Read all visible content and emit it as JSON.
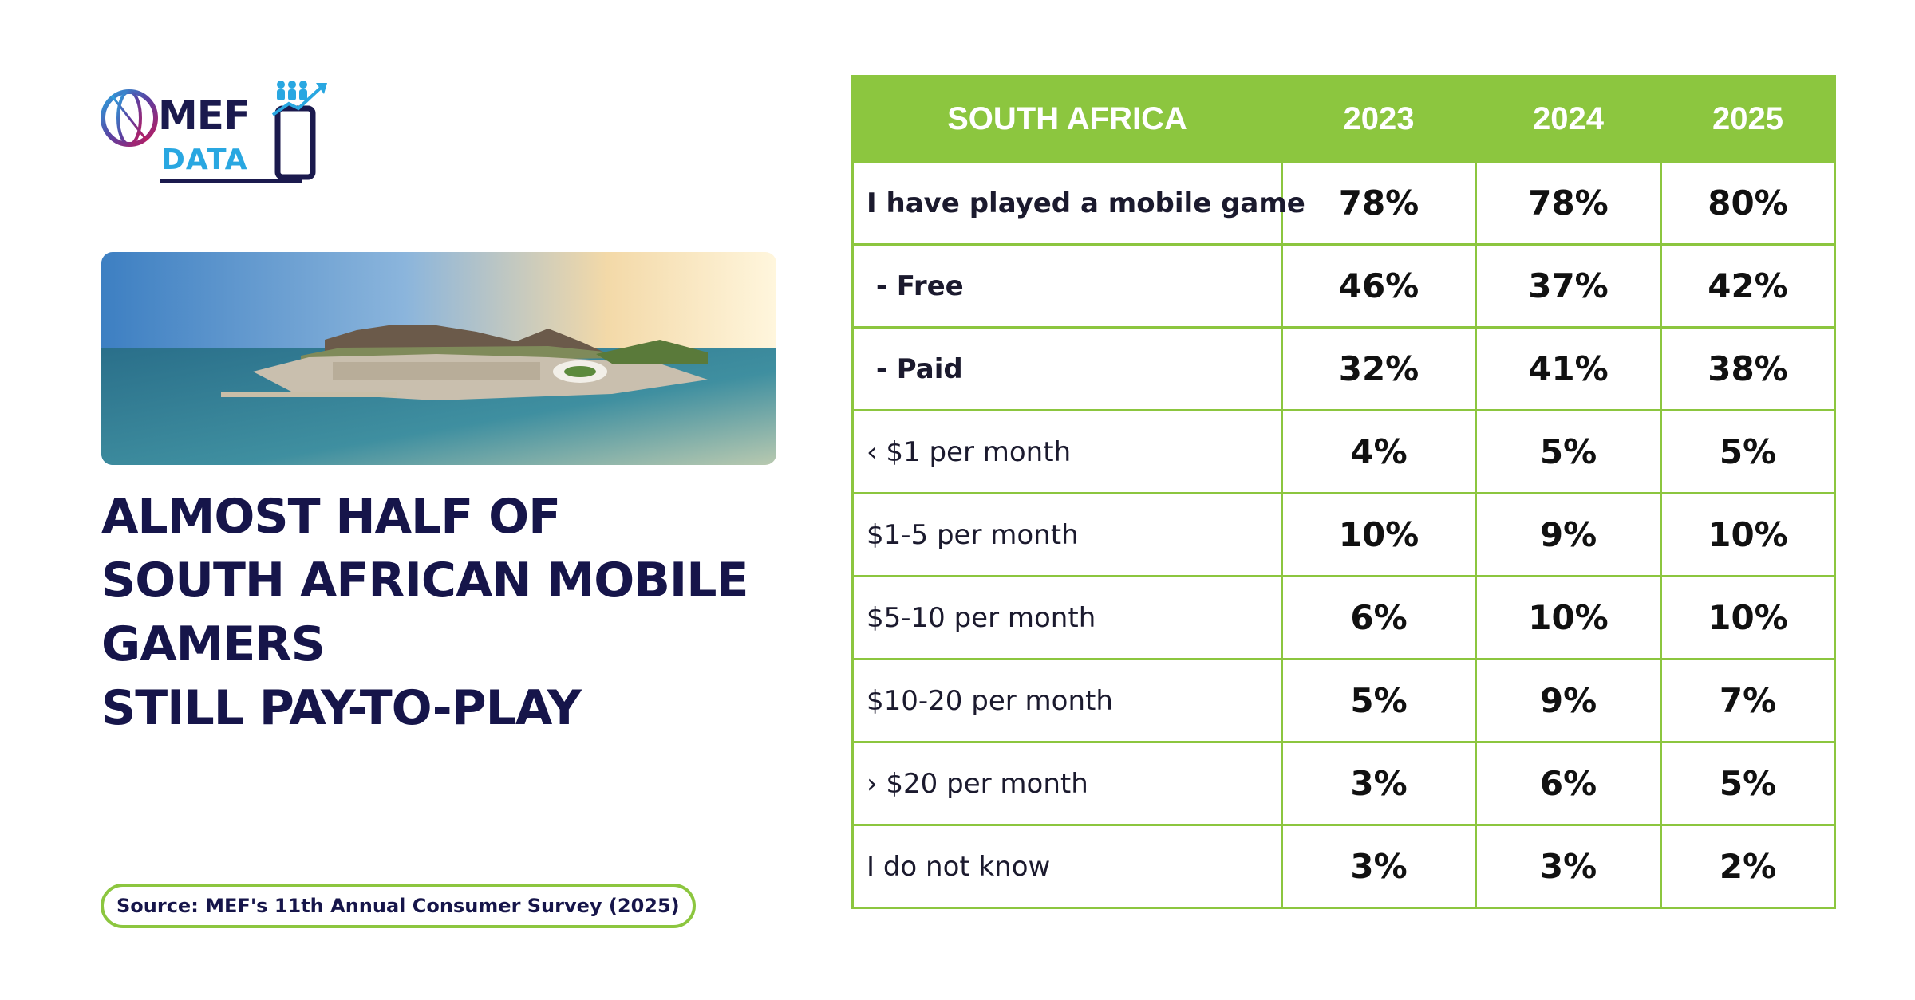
{
  "brand": {
    "name": "MEF",
    "sub": "DATA",
    "colors": {
      "navy": "#16154a",
      "green": "#8cc63f",
      "blue": "#29a7e1"
    }
  },
  "headline": [
    "ALMOST HALF OF",
    "SOUTH AFRICAN MOBILE",
    "GAMERS",
    "STILL PAY-TO-PLAY"
  ],
  "source": "Source: MEF's 11th Annual Consumer Survey (2025)",
  "chart_data": {
    "type": "table",
    "columns": [
      "SOUTH AFRICA",
      "2023",
      "2024",
      "2025"
    ],
    "rows": [
      {
        "label": "I have played a mobile game",
        "bold": true,
        "values": [
          "78%",
          "78%",
          "80%"
        ]
      },
      {
        "label": " - Free",
        "bold": true,
        "values": [
          "46%",
          "37%",
          "42%"
        ]
      },
      {
        "label": " - Paid",
        "bold": true,
        "values": [
          "32%",
          "41%",
          "38%"
        ]
      },
      {
        "label": "‹ $1 per month",
        "bold": false,
        "values": [
          "4%",
          "5%",
          "5%"
        ]
      },
      {
        "label": "$1-5 per month",
        "bold": false,
        "values": [
          "10%",
          "9%",
          "10%"
        ]
      },
      {
        "label": "$5-10 per month",
        "bold": false,
        "values": [
          "6%",
          "10%",
          "10%"
        ]
      },
      {
        "label": "$10-20 per month",
        "bold": false,
        "values": [
          "5%",
          "9%",
          "7%"
        ]
      },
      {
        "label": "› $20 per month",
        "bold": false,
        "values": [
          "3%",
          "6%",
          "5%"
        ]
      },
      {
        "label": "I do not know",
        "bold": false,
        "values": [
          "3%",
          "3%",
          "2%"
        ]
      }
    ]
  }
}
